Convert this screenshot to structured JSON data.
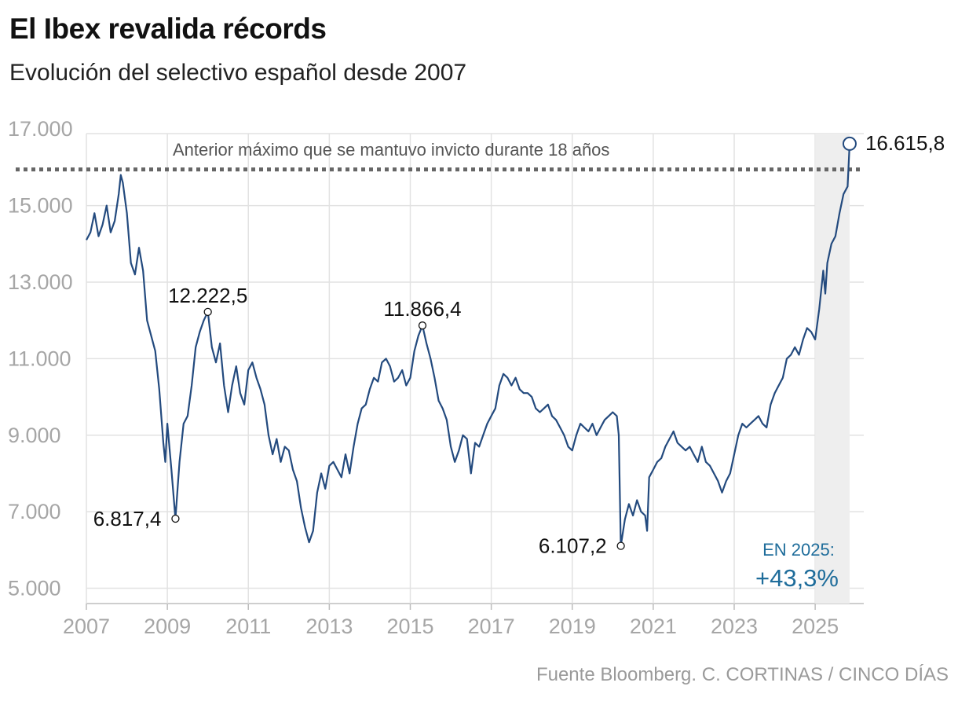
{
  "header": {
    "title": "El Ibex revalida récords",
    "subtitle": "Evolución del selectivo español desde 2007"
  },
  "footer": {
    "source": "Fuente Bloomberg. C. CORTINAS / CINCO DÍAS"
  },
  "colors": {
    "line": "#234a7e",
    "grid": "#e2e2e2",
    "highlight_band": "#eeeeee",
    "reference_line": "#666666",
    "accent_text": "#1f6d9b"
  },
  "chart_data": {
    "type": "line",
    "title": "El Ibex revalida récords",
    "subtitle": "Evolución del selectivo español desde 2007",
    "xlabel": "",
    "ylabel": "",
    "xlim": [
      2007,
      2026.2
    ],
    "ylim": [
      4600,
      17600
    ],
    "grid": true,
    "x_ticks": [
      2007,
      2009,
      2011,
      2013,
      2015,
      2017,
      2019,
      2021,
      2023,
      2025
    ],
    "x_tick_labels": [
      "2007",
      "2009",
      "2011",
      "2013",
      "2015",
      "2017",
      "2019",
      "2021",
      "2023",
      "2025"
    ],
    "y_ticks": [
      5000,
      7000,
      9000,
      11000,
      13000,
      15000,
      17000
    ],
    "y_tick_labels": [
      "5.000",
      "7.000",
      "9.000",
      "11.000",
      "13.000",
      "15.000",
      "17.000"
    ],
    "highlight_period": [
      2025,
      2025.85
    ],
    "reference_line": {
      "y": 15945,
      "style": "dotted",
      "label": "Anterior máximo que se mantuvo invicto durante 18 años"
    },
    "annotations": [
      {
        "x": 2009.2,
        "y": 6817.4,
        "label": "6.817,4",
        "position": "left"
      },
      {
        "x": 2010.0,
        "y": 12222.5,
        "label": "12.222,5",
        "position": "above"
      },
      {
        "x": 2015.3,
        "y": 11866.4,
        "label": "11.866,4",
        "position": "above"
      },
      {
        "x": 2020.2,
        "y": 6107.2,
        "label": "6.107,2",
        "position": "left"
      },
      {
        "x": 2025.85,
        "y": 16615.8,
        "label": "16.615,8",
        "position": "right"
      }
    ],
    "highlight_box": {
      "label": "EN 2025:",
      "value": "+43,3%"
    },
    "series": [
      {
        "x": [
          2007.0,
          2007.1,
          2007.2,
          2007.3,
          2007.4,
          2007.5,
          2007.6,
          2007.7,
          2007.8,
          2007.85,
          2007.9,
          2008.0,
          2008.1,
          2008.2,
          2008.3,
          2008.4,
          2008.5,
          2008.6,
          2008.7,
          2008.8,
          2008.9,
          2008.95,
          2009.0,
          2009.1,
          2009.2,
          2009.3,
          2009.4,
          2009.5,
          2009.6,
          2009.7,
          2009.8,
          2009.9,
          2010.0,
          2010.1,
          2010.2,
          2010.3,
          2010.4,
          2010.5,
          2010.6,
          2010.7,
          2010.8,
          2010.9,
          2011.0,
          2011.1,
          2011.2,
          2011.3,
          2011.4,
          2011.5,
          2011.6,
          2011.7,
          2011.8,
          2011.9,
          2012.0,
          2012.1,
          2012.2,
          2012.3,
          2012.4,
          2012.5,
          2012.6,
          2012.7,
          2012.8,
          2012.9,
          2013.0,
          2013.1,
          2013.2,
          2013.3,
          2013.4,
          2013.5,
          2013.6,
          2013.7,
          2013.8,
          2013.9,
          2014.0,
          2014.1,
          2014.2,
          2014.3,
          2014.4,
          2014.5,
          2014.6,
          2014.7,
          2014.8,
          2014.9,
          2015.0,
          2015.1,
          2015.2,
          2015.3,
          2015.4,
          2015.5,
          2015.6,
          2015.7,
          2015.8,
          2015.9,
          2016.0,
          2016.1,
          2016.2,
          2016.3,
          2016.4,
          2016.5,
          2016.6,
          2016.7,
          2016.8,
          2016.9,
          2017.0,
          2017.1,
          2017.2,
          2017.3,
          2017.4,
          2017.5,
          2017.6,
          2017.7,
          2017.8,
          2017.9,
          2018.0,
          2018.1,
          2018.2,
          2018.3,
          2018.4,
          2018.5,
          2018.6,
          2018.7,
          2018.8,
          2018.9,
          2019.0,
          2019.1,
          2019.2,
          2019.3,
          2019.4,
          2019.5,
          2019.6,
          2019.7,
          2019.8,
          2019.9,
          2020.0,
          2020.1,
          2020.15,
          2020.2,
          2020.3,
          2020.4,
          2020.5,
          2020.6,
          2020.7,
          2020.8,
          2020.85,
          2020.9,
          2021.0,
          2021.1,
          2021.2,
          2021.3,
          2021.4,
          2021.5,
          2021.6,
          2021.7,
          2021.8,
          2021.9,
          2022.0,
          2022.1,
          2022.2,
          2022.3,
          2022.4,
          2022.5,
          2022.6,
          2022.7,
          2022.8,
          2022.9,
          2023.0,
          2023.1,
          2023.2,
          2023.3,
          2023.4,
          2023.5,
          2023.6,
          2023.7,
          2023.8,
          2023.9,
          2024.0,
          2024.1,
          2024.2,
          2024.3,
          2024.4,
          2024.5,
          2024.6,
          2024.7,
          2024.8,
          2024.9,
          2025.0,
          2025.1,
          2025.2,
          2025.25,
          2025.3,
          2025.4,
          2025.5,
          2025.6,
          2025.7,
          2025.8,
          2025.85
        ],
        "values": [
          14100,
          14300,
          14800,
          14200,
          14500,
          15000,
          14300,
          14600,
          15300,
          15800,
          15600,
          14800,
          13500,
          13200,
          13900,
          13300,
          12000,
          11600,
          11200,
          10200,
          8800,
          8300,
          9300,
          8100,
          6817.4,
          8300,
          9300,
          9500,
          10300,
          11300,
          11700,
          12000,
          12222.5,
          11300,
          10900,
          11400,
          10300,
          9600,
          10300,
          10800,
          10100,
          9800,
          10700,
          10900,
          10500,
          10200,
          9800,
          9000,
          8500,
          8900,
          8300,
          8700,
          8600,
          8100,
          7800,
          7100,
          6600,
          6200,
          6500,
          7500,
          8000,
          7600,
          8200,
          8300,
          8100,
          7900,
          8500,
          8000,
          8700,
          9300,
          9700,
          9800,
          10200,
          10500,
          10400,
          10900,
          11000,
          10800,
          10400,
          10500,
          10700,
          10300,
          10500,
          11200,
          11600,
          11866.4,
          11400,
          11000,
          10500,
          9900,
          9700,
          9400,
          8700,
          8300,
          8600,
          9000,
          8900,
          8000,
          8800,
          8700,
          9000,
          9300,
          9500,
          9700,
          10300,
          10600,
          10500,
          10300,
          10500,
          10200,
          10100,
          10100,
          10000,
          9700,
          9600,
          9700,
          9800,
          9500,
          9400,
          9200,
          9000,
          8700,
          8600,
          9000,
          9300,
          9200,
          9100,
          9300,
          9000,
          9200,
          9400,
          9500,
          9600,
          9500,
          9000,
          6107.2,
          6800,
          7200,
          6900,
          7300,
          7000,
          6900,
          6500,
          7900,
          8100,
          8300,
          8400,
          8700,
          8900,
          9100,
          8800,
          8700,
          8600,
          8700,
          8500,
          8300,
          8700,
          8300,
          8200,
          8000,
          7800,
          7500,
          7800,
          8000,
          8500,
          9000,
          9300,
          9200,
          9300,
          9400,
          9500,
          9300,
          9200,
          9800,
          10100,
          10300,
          10500,
          11000,
          11100,
          11300,
          11100,
          11500,
          11800,
          11700,
          11500,
          12300,
          13300,
          12700,
          13500,
          14000,
          14200,
          14800,
          15300,
          15500,
          16615.8
        ]
      }
    ]
  }
}
